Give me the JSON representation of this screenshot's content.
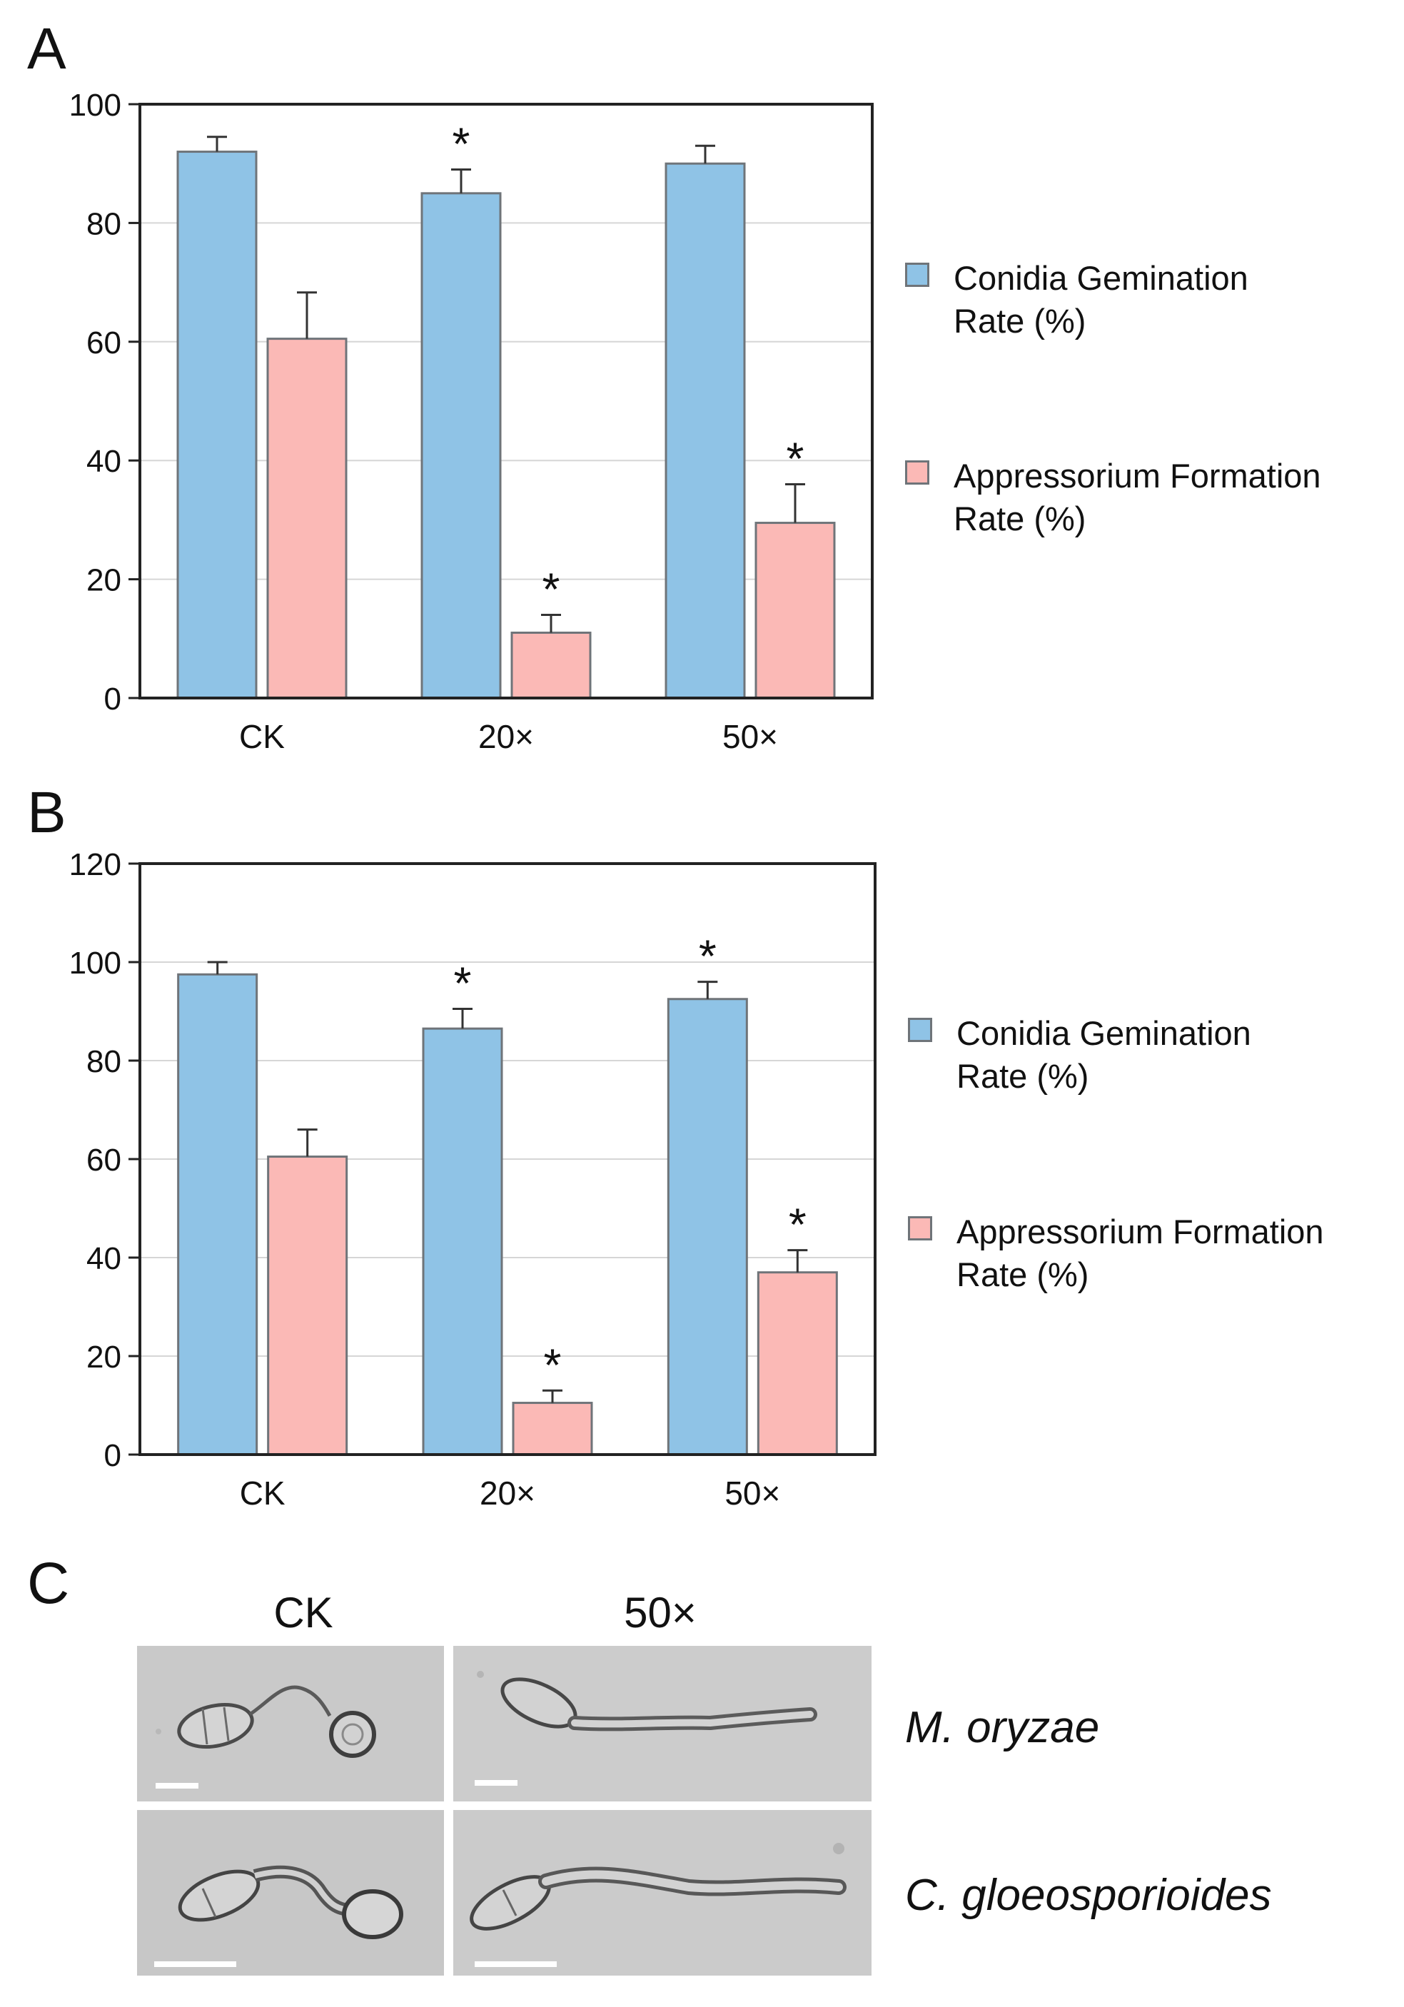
{
  "panels": {
    "a": "A",
    "b": "B",
    "c": "C"
  },
  "colors": {
    "conidia": "#8fc3e6",
    "appressorium": "#fbb9b6",
    "bar_stroke": "#6f7479",
    "gridline": "#d6d6d6"
  },
  "legend": {
    "conidia_line1": "Conidia Gemination",
    "conidia_line2": "Rate (%)",
    "appressorium_line1": "Appressorium Formation",
    "appressorium_line2": "Rate (%)"
  },
  "chart_data": [
    {
      "type": "bar",
      "panel": "A",
      "categories": [
        "CK",
        "20×",
        "50×"
      ],
      "ylim": [
        0,
        100
      ],
      "yticks": [
        0,
        20,
        40,
        60,
        80,
        100
      ],
      "grid": true,
      "legend_position": "right",
      "series": [
        {
          "name": "Conidia Gemination Rate (%)",
          "values": [
            92,
            85,
            90
          ],
          "errors": [
            2.5,
            4,
            3
          ],
          "significant": [
            false,
            true,
            false
          ]
        },
        {
          "name": "Appressorium Formation Rate (%)",
          "values": [
            60.5,
            11,
            29.5
          ],
          "errors": [
            7.8,
            3,
            6.5
          ],
          "significant": [
            false,
            true,
            true
          ]
        }
      ]
    },
    {
      "type": "bar",
      "panel": "B",
      "categories": [
        "CK",
        "20×",
        "50×"
      ],
      "ylim": [
        0,
        120
      ],
      "yticks": [
        0,
        20,
        40,
        60,
        80,
        100,
        120
      ],
      "grid": true,
      "legend_position": "right",
      "series": [
        {
          "name": "Conidia Gemination Rate (%)",
          "values": [
            97.5,
            86.5,
            92.5
          ],
          "errors": [
            2.5,
            4,
            3.5
          ],
          "significant": [
            false,
            true,
            true
          ]
        },
        {
          "name": "Appressorium Formation Rate (%)",
          "values": [
            60.5,
            10.5,
            37
          ],
          "errors": [
            5.5,
            2.5,
            4.5
          ],
          "significant": [
            false,
            true,
            true
          ]
        }
      ]
    }
  ],
  "micrographs": {
    "headers": [
      "CK",
      "50×"
    ],
    "species": [
      "M. oryzae",
      "C. gloeosporioides"
    ]
  }
}
